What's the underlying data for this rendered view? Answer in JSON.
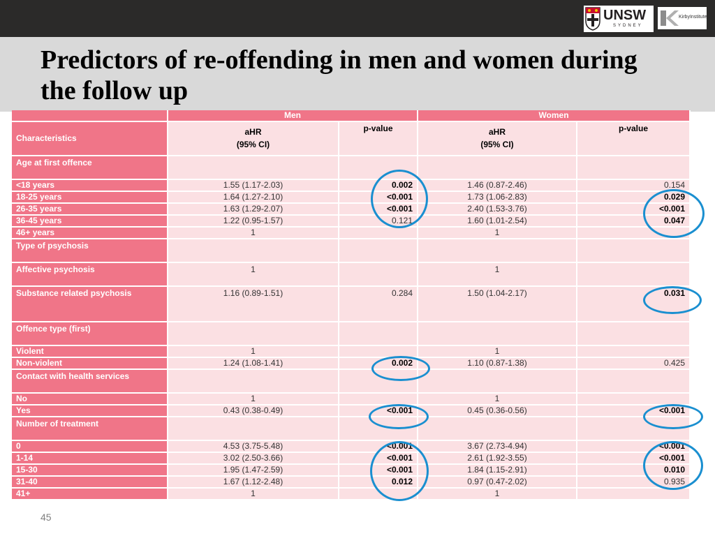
{
  "title": "Predictors of re-offending in men and women during the follow up",
  "logos": {
    "unsw": "UNSW",
    "unsw_sub": "SYDNEY",
    "kirby": "KirbyInstitute"
  },
  "table": {
    "group_men": "Men",
    "group_women": "Women",
    "characteristics": "Characteristics",
    "ahr_line1": "aHR",
    "ahr_line2": "(95% CI)",
    "pvalue": "p-value",
    "rows": [
      {
        "label": "Age at first offence",
        "heading": true,
        "men_ahr": "",
        "men_p": "",
        "women_ahr": "",
        "women_p": ""
      },
      {
        "label": "<18 years",
        "men_ahr": "1.55 (1.17-2.03)",
        "men_p": "0.002",
        "men_p_bold": true,
        "women_ahr": "1.46 (0.87-2.46)",
        "women_p": "0.154"
      },
      {
        "label": "18-25 years",
        "men_ahr": "1.64 (1.27-2.10)",
        "men_p": "<0.001",
        "men_p_bold": true,
        "women_ahr": "1.73 (1.06-2.83)",
        "women_p": "0.029",
        "women_p_bold": true
      },
      {
        "label": "26-35 years",
        "men_ahr": "1.63  (1.29-2.07)",
        "men_p": "<0.001",
        "men_p_bold": true,
        "women_ahr": "2.40 (1.53-3.76)",
        "women_p": "<0.001",
        "women_p_bold": true
      },
      {
        "label": "36-45 years",
        "men_ahr": "1.22 (0.95-1.57)",
        "men_p": "0.121",
        "women_ahr": "1.60 (1.01-2.54)",
        "women_p": "0.047",
        "women_p_bold": true
      },
      {
        "label": "46+ years",
        "men_ahr": "1",
        "men_p": "",
        "women_ahr": "1",
        "women_p": ""
      },
      {
        "label": "Type of psychosis",
        "heading": true,
        "men_ahr": "",
        "men_p": "",
        "women_ahr": "",
        "women_p": ""
      },
      {
        "label": "Affective psychosis",
        "heading": true,
        "men_ahr": "1",
        "men_p": "",
        "women_ahr": "1",
        "women_p": ""
      },
      {
        "label": "Substance related psychosis",
        "heading": true,
        "tall": true,
        "men_ahr": "1.16 (0.89-1.51)",
        "men_p": "0.284",
        "women_ahr": "1.50 (1.04-2.17)",
        "women_p": "0.031",
        "women_p_bold": true
      },
      {
        "label": "Offence type (first)",
        "heading": true,
        "men_ahr": "",
        "men_p": "",
        "women_ahr": "",
        "women_p": ""
      },
      {
        "label": "Violent",
        "men_ahr": "1",
        "men_p": "",
        "women_ahr": "1",
        "women_p": ""
      },
      {
        "label": "Non-violent",
        "men_ahr": "1.24 (1.08-1.41)",
        "men_p": "0.002",
        "men_p_bold": true,
        "women_ahr": "1.10 (0.87-1.38)",
        "women_p": "0.425"
      },
      {
        "label": "Contact with health services",
        "heading": true,
        "men_ahr": "",
        "men_p": "",
        "women_ahr": "",
        "women_p": ""
      },
      {
        "label": " No",
        "men_ahr": "1",
        "men_p": "",
        "women_ahr": "1",
        "women_p": ""
      },
      {
        "label": "Yes",
        "men_ahr": "0.43 (0.38-0.49)",
        "men_p": "<0.001",
        "men_p_bold": true,
        "women_ahr": "0.45 (0.36-0.56)",
        "women_p": "<0.001",
        "women_p_bold": true
      },
      {
        "label": "Number of treatment",
        "heading": true,
        "men_ahr": "",
        "men_p": "",
        "women_ahr": "",
        "women_p": ""
      },
      {
        "label": "0",
        "men_ahr": "4.53 (3.75-5.48)",
        "men_p": "<0.001",
        "men_p_bold": true,
        "women_ahr": "3.67 (2.73-4.94)",
        "women_p": "<0.001",
        "women_p_bold": true
      },
      {
        "label": "1-14",
        "men_ahr": "3.02 (2.50-3.66)",
        "men_p": "<0.001",
        "men_p_bold": true,
        "women_ahr": "2.61 (1.92-3.55)",
        "women_p": "<0.001",
        "women_p_bold": true
      },
      {
        "label": "15-30",
        "men_ahr": "1.95 (1.47-2.59)",
        "men_p": "<0.001",
        "men_p_bold": true,
        "women_ahr": "1.84 (1.15-2.91)",
        "women_p": "0.010",
        "women_p_bold": true
      },
      {
        "label": "31-40",
        "men_ahr": "1.67 (1.12-2.48)",
        "men_p": "0.012",
        "men_p_bold": true,
        "women_ahr": "0.97 (0.47-2.02)",
        "women_p": "0.935"
      },
      {
        "label": "41+",
        "men_ahr": "1",
        "men_p": "",
        "women_ahr": "1",
        "women_p": ""
      }
    ]
  },
  "highlight_color": "#1a8fd0",
  "header_color": "#f07588",
  "cell_color": "#fbe0e3",
  "page_number": "45"
}
